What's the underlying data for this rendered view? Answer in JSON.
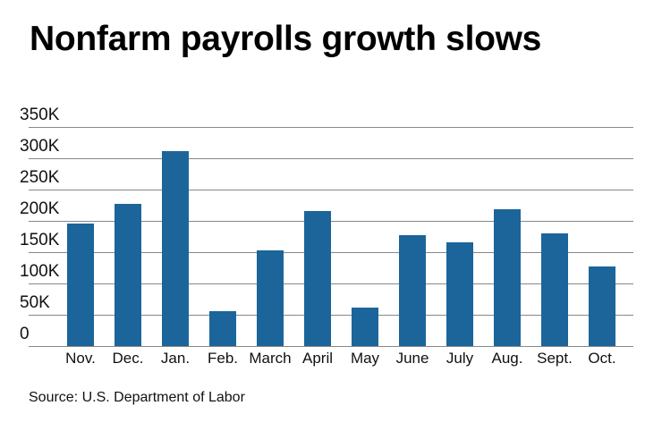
{
  "title": "Nonfarm payrolls growth slows",
  "source": "Source: U.S. Department of Labor",
  "colors": {
    "bar": "#1b659b",
    "grid": "#888888"
  },
  "chart_data": {
    "type": "bar",
    "title": "Nonfarm payrolls growth slows",
    "xlabel": "",
    "ylabel": "",
    "categories": [
      "Nov.",
      "Dec.",
      "Jan.",
      "Feb.",
      "March",
      "April",
      "May",
      "June",
      "July",
      "Aug.",
      "Sept.",
      "Oct."
    ],
    "values": [
      195000,
      226000,
      311000,
      55000,
      152000,
      215000,
      61000,
      177000,
      165000,
      218000,
      179000,
      127000
    ],
    "yticks": [
      "0",
      "50K",
      "100K",
      "150K",
      "200K",
      "250K",
      "300K",
      "350K"
    ],
    "ylim": [
      0,
      350000
    ],
    "grid": true,
    "legend": null,
    "source": "Source: U.S. Department of Labor"
  }
}
